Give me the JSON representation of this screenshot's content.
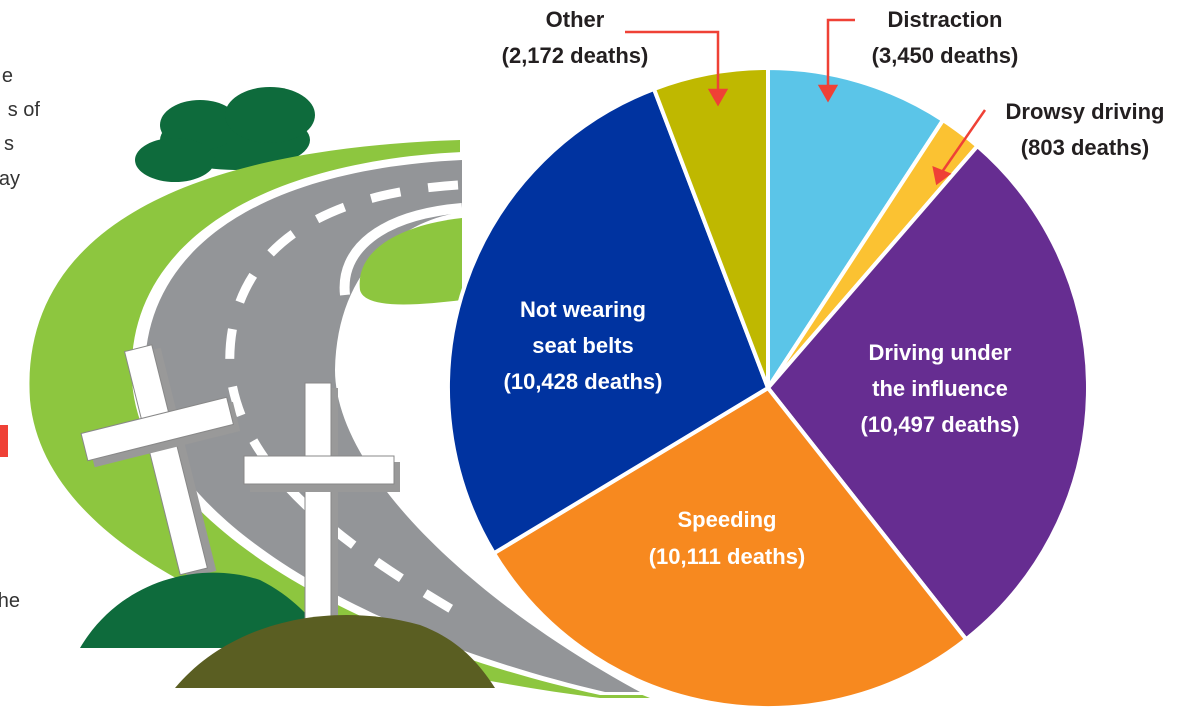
{
  "chart_data": {
    "type": "pie",
    "categories": [
      "Distraction",
      "Drowsy driving",
      "Driving under the influence",
      "Speeding",
      "Not wearing seat belts",
      "Other"
    ],
    "values": [
      3450,
      803,
      10497,
      10111,
      10428,
      2172
    ],
    "value_labels": [
      "(3,450 deaths)",
      "(803 deaths)",
      "(10,497 deaths)",
      "(10,111 deaths)",
      "(10,428 deaths)",
      "(2,172 deaths)"
    ],
    "colors": [
      "#5bc5e8",
      "#fbc232",
      "#662d91",
      "#f7891f",
      "#0033a0",
      "#bfb800"
    ]
  },
  "side_text": [
    "e",
    "s of",
    "s",
    "ay",
    "he"
  ]
}
